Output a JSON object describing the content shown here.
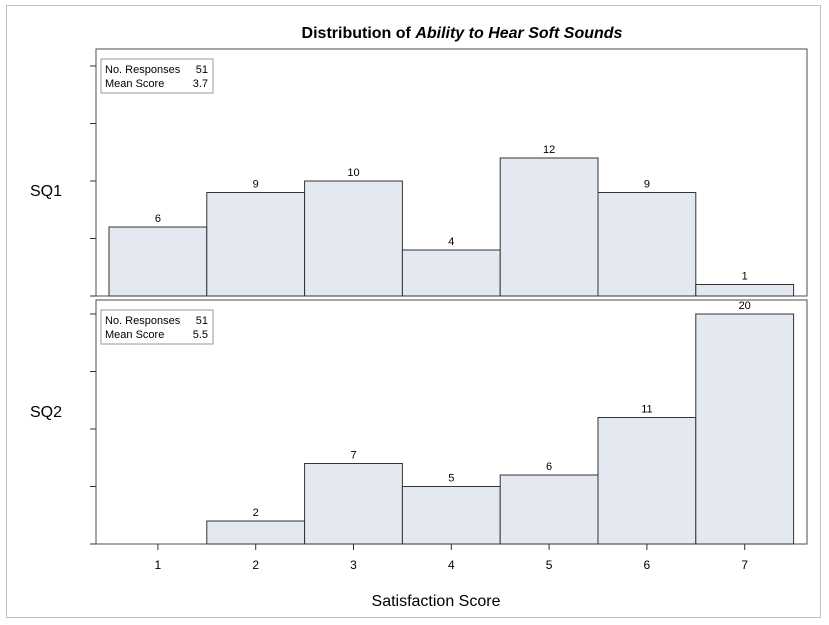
{
  "chart_data": {
    "type": "bar",
    "title_prefix": "Distribution of ",
    "title_emphasis": "Ability to Hear Soft Sounds",
    "xlabel": "Satisfaction Score",
    "categories": [
      "1",
      "2",
      "3",
      "4",
      "5",
      "6",
      "7"
    ],
    "ylim": [
      0,
      24
    ],
    "grid": false,
    "panels": [
      {
        "name": "SQ1",
        "values": [
          6,
          9,
          10,
          4,
          12,
          9,
          1
        ],
        "stats_label_1": "No. Responses",
        "stats_value_1": "51",
        "stats_label_2": "Mean Score",
        "stats_value_2": "3.7"
      },
      {
        "name": "SQ2",
        "values": [
          0,
          2,
          7,
          5,
          6,
          11,
          20
        ],
        "stats_label_1": "No. Responses",
        "stats_value_1": "51",
        "stats_label_2": "Mean Score",
        "stats_value_2": "5.5"
      }
    ],
    "colors": {
      "bar_fill": "#e4e9f1",
      "bar_stroke": "#333333"
    }
  }
}
